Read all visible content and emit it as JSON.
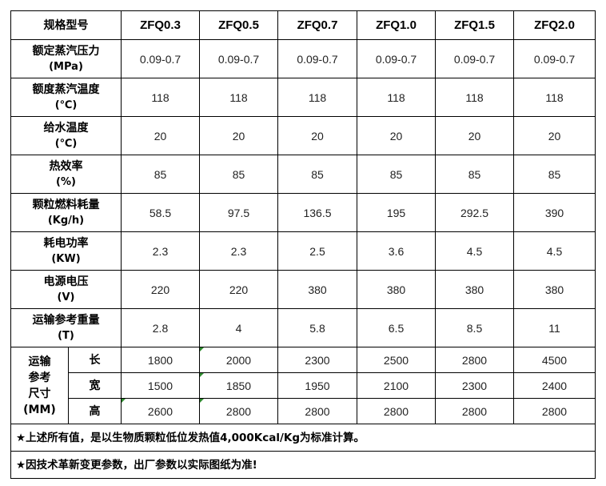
{
  "header": {
    "spec_label": "规格型号",
    "models": [
      "ZFQ0.3",
      "ZFQ0.5",
      "ZFQ0.7",
      "ZFQ1.0",
      "ZFQ1.5",
      "ZFQ2.0"
    ]
  },
  "rows": [
    {
      "name": "额定蒸汽压力",
      "unit": "(MPa)",
      "values": [
        "0.09-0.7",
        "0.09-0.7",
        "0.09-0.7",
        "0.09-0.7",
        "0.09-0.7",
        "0.09-0.7"
      ]
    },
    {
      "name": "额度蒸汽温度",
      "unit": "(℃)",
      "values": [
        "118",
        "118",
        "118",
        "118",
        "118",
        "118"
      ]
    },
    {
      "name": "给水温度",
      "unit": "(℃)",
      "values": [
        "20",
        "20",
        "20",
        "20",
        "20",
        "20"
      ]
    },
    {
      "name": "热效率",
      "unit": "(%)",
      "values": [
        "85",
        "85",
        "85",
        "85",
        "85",
        "85"
      ]
    },
    {
      "name": "颗粒燃料耗量",
      "unit": "(Kg/h)",
      "values": [
        "58.5",
        "97.5",
        "136.5",
        "195",
        "292.5",
        "390"
      ]
    },
    {
      "name": "耗电功率",
      "unit": "(KW)",
      "values": [
        "2.3",
        "2.3",
        "2.5",
        "3.6",
        "4.5",
        "4.5"
      ]
    },
    {
      "name": "电源电压",
      "unit": "(V)",
      "values": [
        "220",
        "220",
        "380",
        "380",
        "380",
        "380"
      ]
    },
    {
      "name": "运输参考重量",
      "unit": "(T)",
      "values": [
        "2.8",
        "4",
        "5.8",
        "6.5",
        "8.5",
        "11"
      ]
    }
  ],
  "dimensions": {
    "label_lines": [
      "运输",
      "参考",
      "尺寸",
      "(MM)"
    ],
    "items": [
      {
        "name": "长",
        "values": [
          "1800",
          "2000",
          "2300",
          "2500",
          "2800",
          "4500"
        ]
      },
      {
        "name": "宽",
        "values": [
          "1500",
          "1850",
          "1950",
          "2100",
          "2300",
          "2400"
        ]
      },
      {
        "name": "高",
        "values": [
          "2600",
          "2800",
          "2800",
          "2800",
          "2800",
          "2800"
        ]
      }
    ]
  },
  "notes": [
    "★上述所有值，是以生物质颗粒低位发热值4,000Kcal/Kg为标准计算。",
    "★因技术革新变更参数，出厂参数以实际图纸为准!"
  ]
}
